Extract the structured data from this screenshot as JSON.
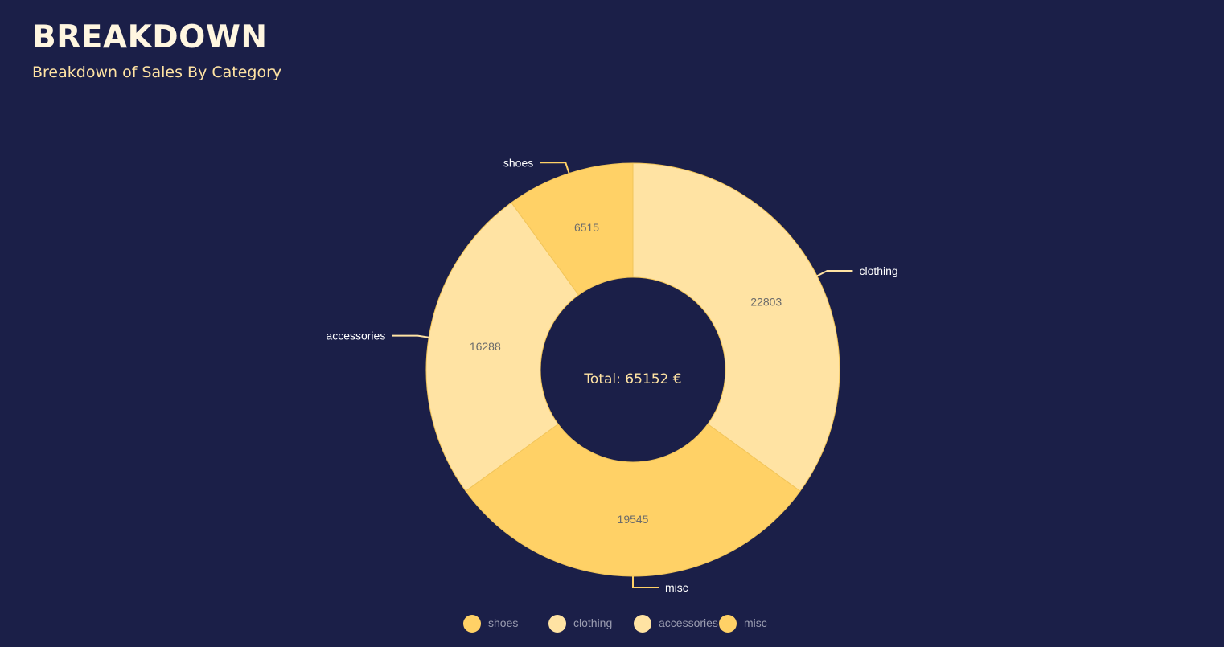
{
  "page": {
    "title": "BREAKDOWN",
    "subtitle": "Breakdown of Sales By Category"
  },
  "colors": {
    "background": "#1b1f48",
    "title": "#fff6e0",
    "subtitle": "#ffe3a3",
    "slice_dark": "#ffd166",
    "slice_light": "#ffe3a3",
    "value_label": "#6b6b6b",
    "center_text": "#ffe3a3",
    "outer_label": "#ffffff",
    "legend_text": "#9a9cb0"
  },
  "chart_data": {
    "type": "pie",
    "donut": true,
    "center_label": "Total: 65152 €",
    "categories": [
      "shoes",
      "clothing",
      "accessories",
      "misc"
    ],
    "values": [
      6515,
      22803,
      16288,
      19545
    ],
    "slice_order": [
      "clothing",
      "misc",
      "accessories",
      "shoes"
    ],
    "slice_colors": {
      "shoes": "#ffd166",
      "clothing": "#ffe3a3",
      "accessories": "#ffe3a3",
      "misc": "#ffd166"
    },
    "legend": {
      "position": "bottom",
      "items": [
        "shoes",
        "clothing",
        "accessories",
        "misc"
      ]
    }
  }
}
